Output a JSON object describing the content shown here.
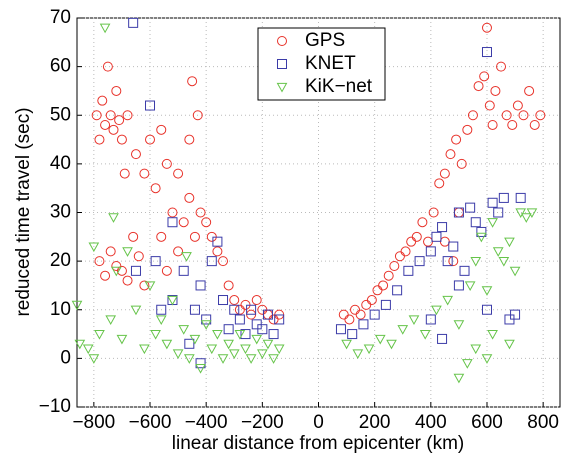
{
  "chart_data": {
    "type": "scatter",
    "x_label": "linear distance from epicenter (km)",
    "y_label": "reduced time travel (sec)",
    "xlim": [
      -860,
      860
    ],
    "ylim": [
      -10,
      70
    ],
    "xticks": [
      {
        "value": -800,
        "label": "−800"
      },
      {
        "value": -600,
        "label": "−600"
      },
      {
        "value": -400,
        "label": "−400"
      },
      {
        "value": -200,
        "label": "−200"
      },
      0,
      200,
      400,
      600,
      800
    ],
    "yticks": [
      {
        "value": -10,
        "label": "−10"
      },
      0,
      10,
      20,
      30,
      40,
      50,
      60,
      70
    ],
    "grid": true,
    "legend": "top",
    "series": [
      {
        "name": "GPS",
        "color": "#e8332b",
        "marker": "circle",
        "x": [
          -790,
          -780,
          -770,
          -760,
          -750,
          -740,
          -730,
          -720,
          -710,
          -700,
          -690,
          -680,
          -650,
          -620,
          -600,
          -580,
          -560,
          -540,
          -520,
          -500,
          -480,
          -460,
          -440,
          -420,
          -400,
          -380,
          -360,
          -340,
          -320,
          -300,
          -280,
          -260,
          -240,
          -220,
          -200,
          -180,
          -160,
          -140,
          -780,
          -760,
          -740,
          -720,
          -700,
          -680,
          -660,
          -640,
          -620,
          -560,
          -540,
          -500,
          -460,
          -430,
          -450,
          90,
          110,
          130,
          150,
          170,
          190,
          210,
          230,
          250,
          270,
          290,
          310,
          330,
          350,
          370,
          390,
          410,
          430,
          450,
          470,
          490,
          510,
          530,
          550,
          570,
          590,
          610,
          630,
          650,
          670,
          690,
          710,
          730,
          750,
          770,
          790,
          600,
          620,
          450,
          480,
          500
        ],
        "values": [
          50,
          45,
          53,
          48,
          60,
          50,
          47,
          55,
          49,
          45,
          38,
          50,
          42,
          38,
          45,
          35,
          47,
          40,
          30,
          38,
          28,
          33,
          25,
          30,
          28,
          25,
          22,
          20,
          15,
          12,
          10,
          11,
          9,
          12,
          10,
          9,
          8,
          9,
          20,
          17,
          22,
          19,
          18,
          16,
          25,
          21,
          15,
          25,
          18,
          22,
          45,
          50,
          57,
          9,
          8,
          10,
          9,
          11,
          12,
          14,
          15,
          17,
          19,
          21,
          22,
          24,
          25,
          28,
          24,
          30,
          36,
          38,
          42,
          45,
          40,
          47,
          50,
          56,
          58,
          52,
          55,
          60,
          50,
          48,
          52,
          50,
          55,
          48,
          50,
          68,
          48,
          24,
          20,
          30
        ]
      },
      {
        "name": "KNET",
        "color": "#3b3ba8",
        "marker": "square",
        "x": [
          -660,
          -650,
          -600,
          -580,
          -520,
          -480,
          -440,
          -420,
          -400,
          -380,
          -360,
          -340,
          -320,
          -300,
          -280,
          -260,
          -240,
          -220,
          -200,
          -180,
          -160,
          -140,
          -460,
          -420,
          -520,
          -560,
          80,
          120,
          160,
          200,
          240,
          280,
          320,
          360,
          400,
          420,
          440,
          460,
          480,
          500,
          520,
          540,
          560,
          580,
          600,
          620,
          640,
          660,
          400,
          440,
          500,
          600,
          680,
          700,
          720
        ],
        "values": [
          69,
          18,
          52,
          20,
          28,
          18,
          10,
          15,
          8,
          20,
          24,
          12,
          6,
          10,
          8,
          5,
          10,
          7,
          6,
          9,
          5,
          8,
          3,
          -1,
          12,
          10,
          6,
          5,
          7,
          9,
          11,
          14,
          18,
          20,
          22,
          25,
          27,
          20,
          23,
          30,
          18,
          31,
          28,
          26,
          63,
          32,
          30,
          33,
          8,
          4,
          15,
          10,
          8,
          9,
          33
        ]
      },
      {
        "name": "KiK−net",
        "color": "#66c44a",
        "marker": "triangle",
        "x": [
          -860,
          -850,
          -820,
          -800,
          -780,
          -760,
          -740,
          -720,
          -700,
          -680,
          -650,
          -620,
          -600,
          -580,
          -560,
          -540,
          -520,
          -500,
          -480,
          -460,
          -440,
          -420,
          -400,
          -380,
          -360,
          -340,
          -320,
          -300,
          -280,
          -260,
          -240,
          -220,
          -200,
          -180,
          -160,
          -140,
          -800,
          -730,
          -470,
          100,
          140,
          180,
          220,
          260,
          300,
          340,
          380,
          420,
          460,
          500,
          540,
          560,
          580,
          600,
          620,
          640,
          660,
          680,
          700,
          720,
          740,
          760,
          530,
          560,
          600,
          620,
          680,
          500
        ],
        "values": [
          11,
          3,
          2,
          0,
          5,
          68,
          8,
          18,
          4,
          22,
          10,
          2,
          15,
          5,
          8,
          3,
          12,
          1,
          6,
          0,
          4,
          -2,
          7,
          2,
          5,
          0,
          3,
          1,
          5,
          2,
          0,
          4,
          1,
          3,
          0,
          2,
          23,
          29,
          21,
          3,
          1,
          2,
          4,
          3,
          6,
          8,
          5,
          10,
          12,
          7,
          15,
          20,
          25,
          14,
          28,
          22,
          20,
          24,
          18,
          30,
          29,
          30,
          -1,
          2,
          0,
          5,
          3,
          -4
        ]
      }
    ]
  }
}
